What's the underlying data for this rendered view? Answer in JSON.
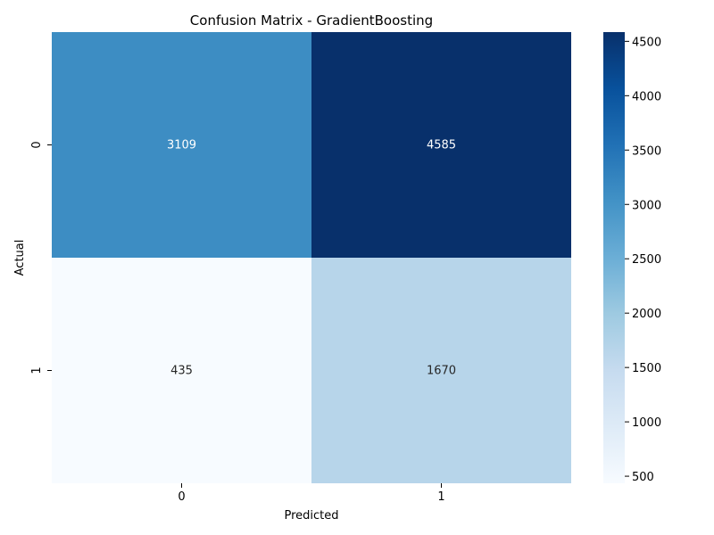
{
  "chart_data": {
    "type": "heatmap",
    "title": "Confusion Matrix - GradientBoosting",
    "xlabel": "Predicted",
    "ylabel": "Actual",
    "x_categories": [
      "0",
      "1"
    ],
    "y_categories": [
      "0",
      "1"
    ],
    "values": [
      [
        3109,
        4585
      ],
      [
        435,
        1670
      ]
    ],
    "colormap": "Blues",
    "color_range": [
      435,
      4585
    ],
    "colorbar_ticks": [
      500,
      1000,
      1500,
      2000,
      2500,
      3000,
      3500,
      4000,
      4500
    ],
    "grid": false
  }
}
